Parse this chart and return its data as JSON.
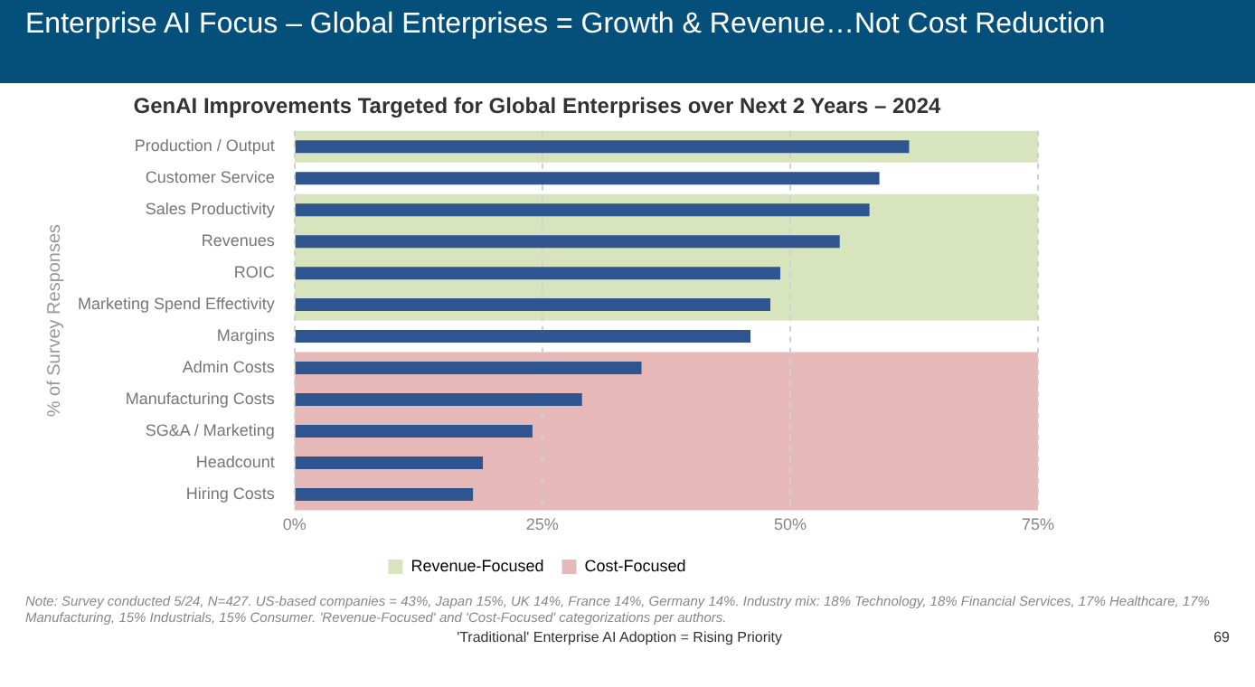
{
  "chart_data": {
    "type": "bar",
    "orientation": "horizontal",
    "title": "Enterprise AI Focus – Global Enterprises = Growth & Revenue…Not Cost Reduction",
    "subtitle": "GenAI Improvements Targeted for Global Enterprises over Next 2 Years – 2024",
    "ylabel": "% of Survey Responses",
    "categories": [
      "Production / Output",
      "Customer Service",
      "Sales Productivity",
      "Revenues",
      "ROIC",
      "Marketing Spend Effectivity",
      "Margins",
      "Admin Costs",
      "Manufacturing Costs",
      "SG&A / Marketing",
      "Headcount",
      "Hiring Costs"
    ],
    "values": [
      62,
      59,
      58,
      55,
      49,
      48,
      46,
      35,
      29,
      24,
      19,
      18
    ],
    "color": "#2e5590",
    "xlim": [
      0,
      75
    ],
    "xticks": [
      {
        "value": 0,
        "label": "0%"
      },
      {
        "value": 25,
        "label": "25%"
      },
      {
        "value": 50,
        "label": "50%"
      },
      {
        "value": 75,
        "label": "75%"
      }
    ],
    "grid": "x",
    "legend": "bottom",
    "bands": [
      {
        "axis": "y",
        "from": "Production / Output",
        "to": "Production / Output",
        "label": "Revenue-Focused",
        "color": "#d7e4bd"
      },
      {
        "axis": "y",
        "from": "Sales Productivity",
        "to": "Marketing Spend Effectivity",
        "color": "#d7e4bd"
      },
      {
        "axis": "y",
        "from": "Admin Costs",
        "to": "Hiring Costs",
        "label": "Cost-Focused",
        "color": "#e6b9b8"
      }
    ],
    "annotations": [
      "Note: Survey conducted 5/24, N=427. US-based companies = 43%, Japan 15%, UK 14%, France 14%, Germany 14%. Industry mix: 18% Technology, 18% Financial Services, 17% Healthcare, 17% Manufacturing, 15% Industrials, 15% Consumer. 'Revenue-Focused' and 'Cost-Focused' categorizations per authors.",
      "'Traditional' Enterprise AI Adoption = Rising Priority",
      "69"
    ]
  }
}
